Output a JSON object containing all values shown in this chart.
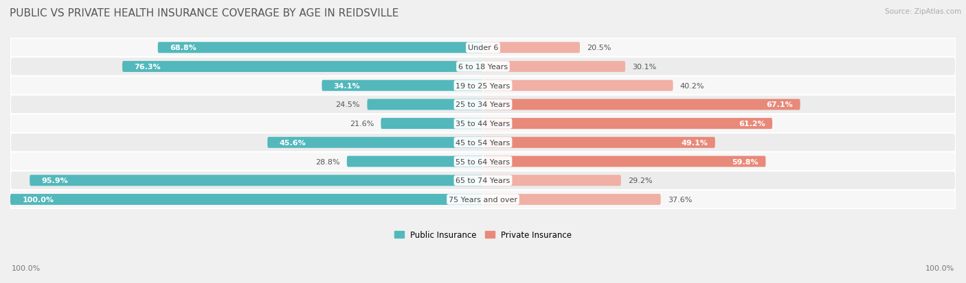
{
  "title": "PUBLIC VS PRIVATE HEALTH INSURANCE COVERAGE BY AGE IN REIDSVILLE",
  "source": "Source: ZipAtlas.com",
  "categories": [
    "Under 6",
    "6 to 18 Years",
    "19 to 25 Years",
    "25 to 34 Years",
    "35 to 44 Years",
    "45 to 54 Years",
    "55 to 64 Years",
    "65 to 74 Years",
    "75 Years and over"
  ],
  "public_values": [
    68.8,
    76.3,
    34.1,
    24.5,
    21.6,
    45.6,
    28.8,
    95.9,
    100.0
  ],
  "private_values": [
    20.5,
    30.1,
    40.2,
    67.1,
    61.2,
    49.1,
    59.8,
    29.2,
    37.6
  ],
  "public_color": "#52b8bc",
  "private_color": "#e8897a",
  "private_color_light": "#f0b0a5",
  "public_label": "Public Insurance",
  "private_label": "Private Insurance",
  "max_value": 100.0,
  "background_color": "#f0f0f0",
  "row_bg_color_light": "#f7f7f7",
  "row_bg_color_dark": "#ececec",
  "title_fontsize": 11,
  "label_fontsize": 8,
  "value_fontsize": 8,
  "axis_label_left": "100.0%",
  "axis_label_right": "100.0%",
  "inside_threshold_pub": 30,
  "inside_threshold_priv": 45
}
